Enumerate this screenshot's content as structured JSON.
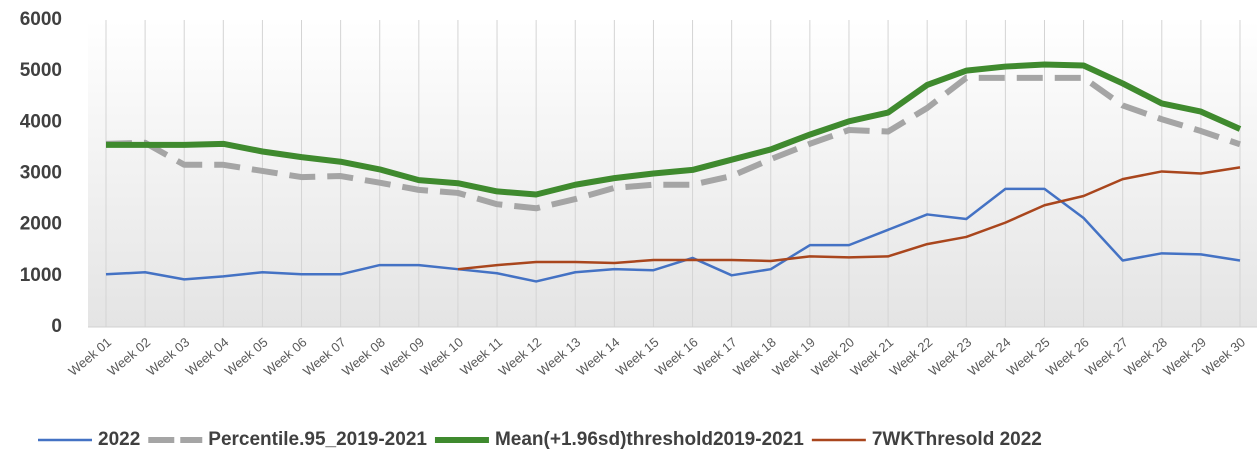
{
  "chart_data": {
    "type": "line",
    "categories": [
      "Week 01",
      "Week 02",
      "Week 03",
      "Week 04",
      "Week 05",
      "Week 06",
      "Week 07",
      "Week 08",
      "Week 09",
      "Week 10",
      "Week 11",
      "Week 12",
      "Week 13",
      "Week 14",
      "Week 15",
      "Week 16",
      "Week 17",
      "Week 18",
      "Week 19",
      "Week 20",
      "Week 21",
      "Week 22",
      "Week 23",
      "Week 24",
      "Week 25",
      "Week 26",
      "Week 27",
      "Week 28",
      "Week 29",
      "Week 30"
    ],
    "series": [
      {
        "name": "2022",
        "color": "#4472c4",
        "values": [
          1030,
          1070,
          930,
          990,
          1070,
          1030,
          1030,
          1210,
          1210,
          1130,
          1050,
          890,
          1070,
          1130,
          1110,
          1350,
          1010,
          1130,
          1600,
          1600,
          1900,
          2200,
          2110,
          2700,
          2700,
          2130,
          1300,
          1440,
          1420,
          1300
        ]
      },
      {
        "name": "Percentile.95_2019-2021",
        "color": "#a5a5a5",
        "dashed": true,
        "values": [
          3580,
          3600,
          3170,
          3170,
          3050,
          2930,
          2950,
          2820,
          2680,
          2620,
          2400,
          2320,
          2500,
          2720,
          2780,
          2780,
          2950,
          3280,
          3580,
          3850,
          3820,
          4280,
          4870,
          4870,
          4870,
          4870,
          4330,
          4060,
          3830,
          3570
        ]
      },
      {
        "name": "Mean(+1.96sd)threshold2019-2021",
        "color": "#3f8a2e",
        "values": [
          3560,
          3560,
          3560,
          3580,
          3430,
          3320,
          3230,
          3080,
          2870,
          2810,
          2650,
          2590,
          2780,
          2910,
          3000,
          3070,
          3270,
          3470,
          3760,
          4020,
          4190,
          4730,
          5010,
          5090,
          5130,
          5110,
          4760,
          4370,
          4210,
          3870
        ]
      },
      {
        "name": "7WKThresold 2022",
        "color": "#a9461d",
        "values": [
          null,
          null,
          null,
          null,
          null,
          null,
          null,
          null,
          null,
          1130,
          1210,
          1270,
          1270,
          1250,
          1310,
          1310,
          1310,
          1290,
          1380,
          1360,
          1380,
          1620,
          1760,
          2040,
          2380,
          2560,
          2890,
          3040,
          3000,
          3120
        ]
      }
    ],
    "ylim": [
      0,
      6000
    ],
    "yticks": [
      0,
      1000,
      2000,
      3000,
      4000,
      5000,
      6000
    ],
    "grid": true,
    "legend": "bottom"
  }
}
